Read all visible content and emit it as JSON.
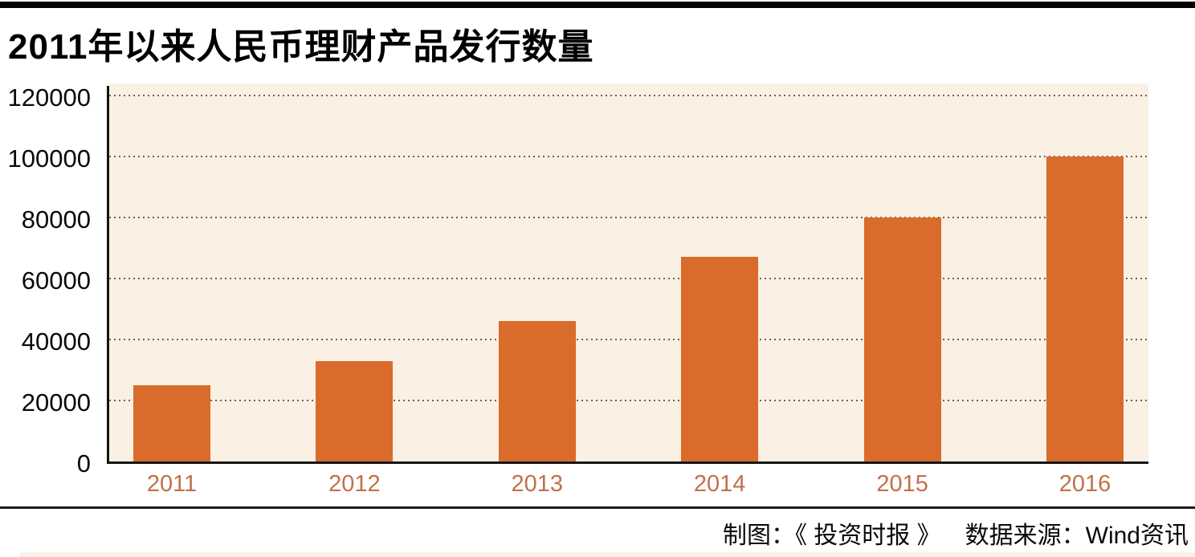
{
  "page": {
    "title": "2011年以来人民币理财产品发行数量",
    "footer": {
      "credit": "制图：《 投资时报 》",
      "source": "数据来源：Wind资讯"
    }
  },
  "chart_data": {
    "type": "bar",
    "title": "2011年以来人民币理财产品发行数量",
    "categories": [
      "2011",
      "2012",
      "2013",
      "2014",
      "2015",
      "2016"
    ],
    "values": [
      25000,
      33000,
      46000,
      67000,
      80000,
      100000
    ],
    "xlabel": "",
    "ylabel": "",
    "ylim": [
      0,
      120000
    ],
    "yticks": [
      0,
      20000,
      40000,
      60000,
      80000,
      100000,
      120000
    ],
    "grid": "horizontal-dotted",
    "legend_position": "none",
    "colors": {
      "bar": "#d96b2b",
      "plot_background": "#faf0e3",
      "x_tick_label": "#c2704a",
      "y_tick_label": "#0a0a0a",
      "axis": "#151515",
      "gridline": "#6f6257",
      "top_bar": "#000000",
      "bottom_strip": "#fcf0e1"
    }
  }
}
